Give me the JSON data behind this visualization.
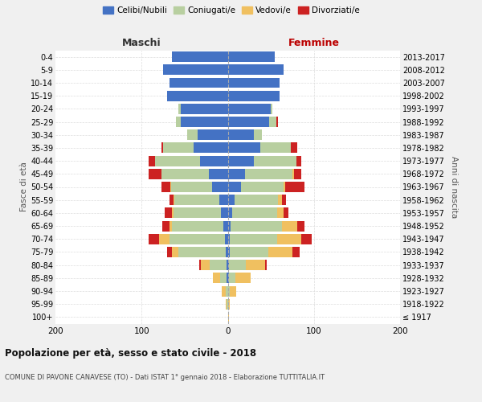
{
  "age_groups": [
    "100+",
    "95-99",
    "90-94",
    "85-89",
    "80-84",
    "75-79",
    "70-74",
    "65-69",
    "60-64",
    "55-59",
    "50-54",
    "45-49",
    "40-44",
    "35-39",
    "30-34",
    "25-29",
    "20-24",
    "15-19",
    "10-14",
    "5-9",
    "0-4"
  ],
  "birth_years": [
    "≤ 1917",
    "1918-1922",
    "1923-1927",
    "1928-1932",
    "1933-1937",
    "1938-1942",
    "1943-1947",
    "1948-1952",
    "1953-1957",
    "1958-1962",
    "1963-1967",
    "1968-1972",
    "1973-1977",
    "1978-1982",
    "1983-1987",
    "1988-1992",
    "1993-1997",
    "1998-2002",
    "2003-2007",
    "2008-2012",
    "2013-2017"
  ],
  "colors": {
    "celibi": "#4472c4",
    "coniugati": "#b8cfa0",
    "vedovi": "#f0c060",
    "divorziati": "#cc2222"
  },
  "maschi": {
    "celibi": [
      0,
      0,
      0,
      1,
      1,
      2,
      3,
      5,
      8,
      10,
      18,
      22,
      32,
      40,
      35,
      55,
      55,
      70,
      68,
      75,
      65
    ],
    "coniugati": [
      0,
      1,
      2,
      8,
      20,
      55,
      65,
      60,
      55,
      52,
      48,
      55,
      52,
      35,
      12,
      5,
      2,
      0,
      0,
      0,
      0
    ],
    "vedovi": [
      0,
      1,
      5,
      8,
      10,
      8,
      12,
      3,
      2,
      1,
      1,
      0,
      0,
      0,
      0,
      0,
      0,
      0,
      0,
      0,
      0
    ],
    "divorziati": [
      0,
      0,
      0,
      0,
      2,
      5,
      12,
      8,
      8,
      5,
      10,
      15,
      8,
      2,
      0,
      0,
      0,
      0,
      0,
      0,
      0
    ]
  },
  "femmine": {
    "celibi": [
      0,
      0,
      0,
      1,
      1,
      2,
      2,
      3,
      5,
      8,
      15,
      20,
      30,
      38,
      30,
      48,
      50,
      60,
      60,
      65,
      55
    ],
    "coniugati": [
      0,
      0,
      2,
      8,
      20,
      45,
      55,
      60,
      52,
      50,
      50,
      55,
      50,
      35,
      10,
      8,
      2,
      0,
      0,
      0,
      0
    ],
    "vedovi": [
      1,
      2,
      8,
      18,
      22,
      28,
      28,
      18,
      8,
      5,
      2,
      2,
      0,
      0,
      0,
      0,
      0,
      0,
      0,
      0,
      0
    ],
    "divorziati": [
      0,
      0,
      0,
      0,
      2,
      8,
      12,
      8,
      5,
      5,
      22,
      8,
      5,
      8,
      0,
      2,
      0,
      0,
      0,
      0,
      0
    ]
  },
  "xlim": 200,
  "title": "Popolazione per età, sesso e stato civile - 2018",
  "subtitle": "COMUNE DI PAVONE CANAVESE (TO) - Dati ISTAT 1° gennaio 2018 - Elaborazione TUTTITALIA.IT",
  "ylabel_left": "Fasce di età",
  "ylabel_right": "Anni di nascita",
  "xlabel_left": "Maschi",
  "xlabel_right": "Femmine",
  "legend_labels": [
    "Celibi/Nubili",
    "Coniugati/e",
    "Vedovi/e",
    "Divorziati/e"
  ],
  "bg_color": "#f0f0f0",
  "plot_bg": "#ffffff"
}
